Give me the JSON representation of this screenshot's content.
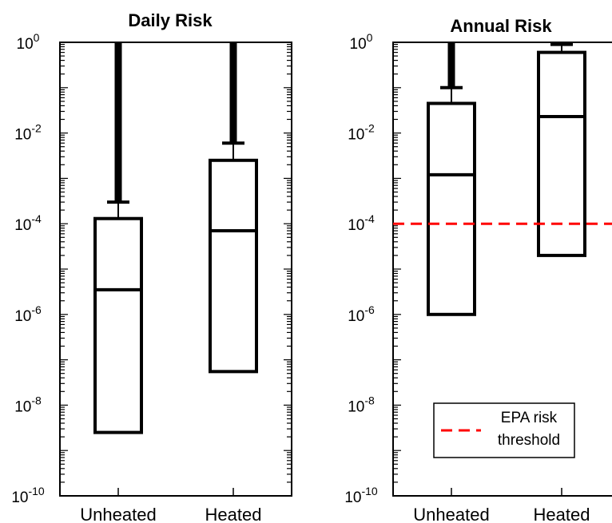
{
  "chart_data": [
    {
      "type": "box",
      "title": "Daily Risk",
      "yscale": "log",
      "ylim": [
        1e-10,
        1
      ],
      "yticks": [
        {
          "base": "10",
          "exp": "0"
        },
        {
          "base": "10",
          "exp": "-2"
        },
        {
          "base": "10",
          "exp": "-4"
        },
        {
          "base": "10",
          "exp": "-6"
        },
        {
          "base": "10",
          "exp": "-8"
        },
        {
          "base": "10",
          "exp": "-10"
        }
      ],
      "categories": [
        "Unheated",
        "Heated"
      ],
      "boxes": [
        {
          "category": "Unheated",
          "whisker_low": null,
          "q1": 2.5e-09,
          "median": 3.5e-06,
          "q3": 0.00013,
          "whisker_high": 0.0003,
          "outliers_range": [
            0.0003,
            1
          ]
        },
        {
          "category": "Heated",
          "whisker_low": null,
          "q1": 5.5e-08,
          "median": 7e-05,
          "q3": 0.0025,
          "whisker_high": 0.006,
          "outliers_range": [
            0.006,
            1
          ]
        }
      ]
    },
    {
      "type": "box",
      "title": "Annual Risk",
      "yscale": "log",
      "ylim": [
        1e-10,
        1
      ],
      "yticks": [
        {
          "base": "10",
          "exp": "0"
        },
        {
          "base": "10",
          "exp": "-2"
        },
        {
          "base": "10",
          "exp": "-4"
        },
        {
          "base": "10",
          "exp": "-6"
        },
        {
          "base": "10",
          "exp": "-8"
        },
        {
          "base": "10",
          "exp": "-10"
        }
      ],
      "categories": [
        "Unheated",
        "Heated"
      ],
      "boxes": [
        {
          "category": "Unheated",
          "whisker_low": null,
          "q1": 1e-06,
          "median": 0.0012,
          "q3": 0.045,
          "whisker_high": 0.1,
          "outliers_range": [
            0.1,
            1
          ]
        },
        {
          "category": "Heated",
          "whisker_low": null,
          "q1": 2e-05,
          "median": 0.023,
          "q3": 0.6,
          "whisker_high": 0.9,
          "outliers_range": null
        }
      ],
      "reference_line": {
        "value": 0.0001,
        "color": "#ff0000",
        "style": "dashed"
      },
      "legend": {
        "placement": "bottom-right",
        "label_line1": "EPA risk",
        "label_line2": "threshold"
      }
    }
  ]
}
